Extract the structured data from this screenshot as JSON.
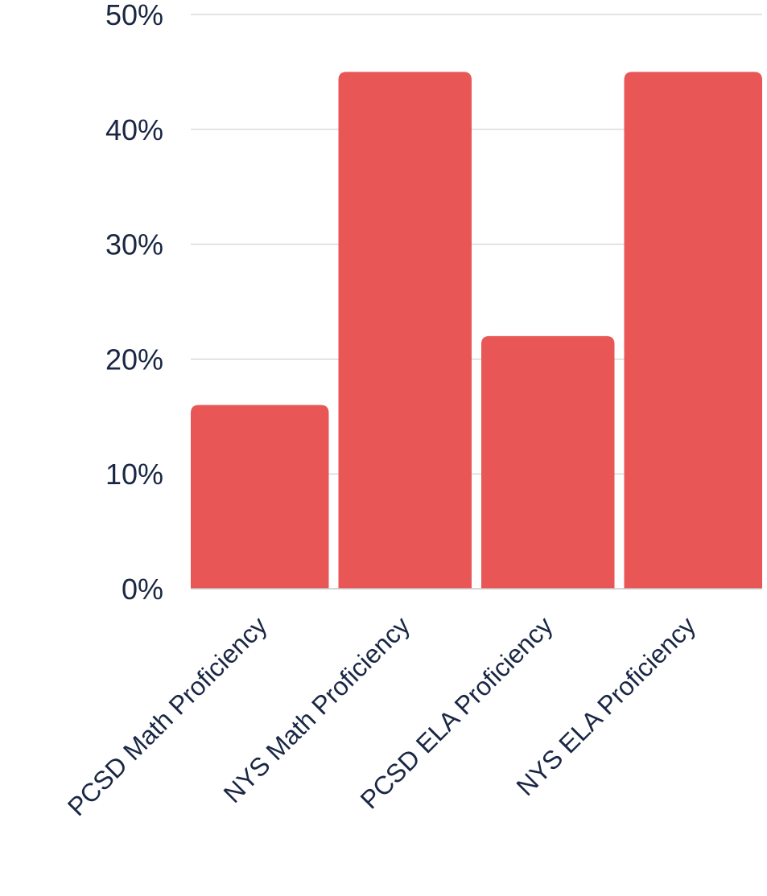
{
  "chart_data": {
    "type": "bar",
    "categories": [
      "PCSD Math Proficiency",
      "NYS Math Proficiency",
      "PCSD ELA Proficiency",
      "NYS ELA Proficiency"
    ],
    "values": [
      16,
      45,
      22,
      45
    ],
    "value_unit": "percent",
    "y_ticks": [
      "0%",
      "10%",
      "20%",
      "30%",
      "40%",
      "50%"
    ],
    "ylim": [
      0,
      50
    ],
    "title": "",
    "xlabel": "",
    "ylabel": "",
    "grid": true,
    "legend": "none",
    "colors": {
      "bar": "#E85656",
      "gridline": "#C8C8C8",
      "axis_text": "#1A2744"
    }
  }
}
